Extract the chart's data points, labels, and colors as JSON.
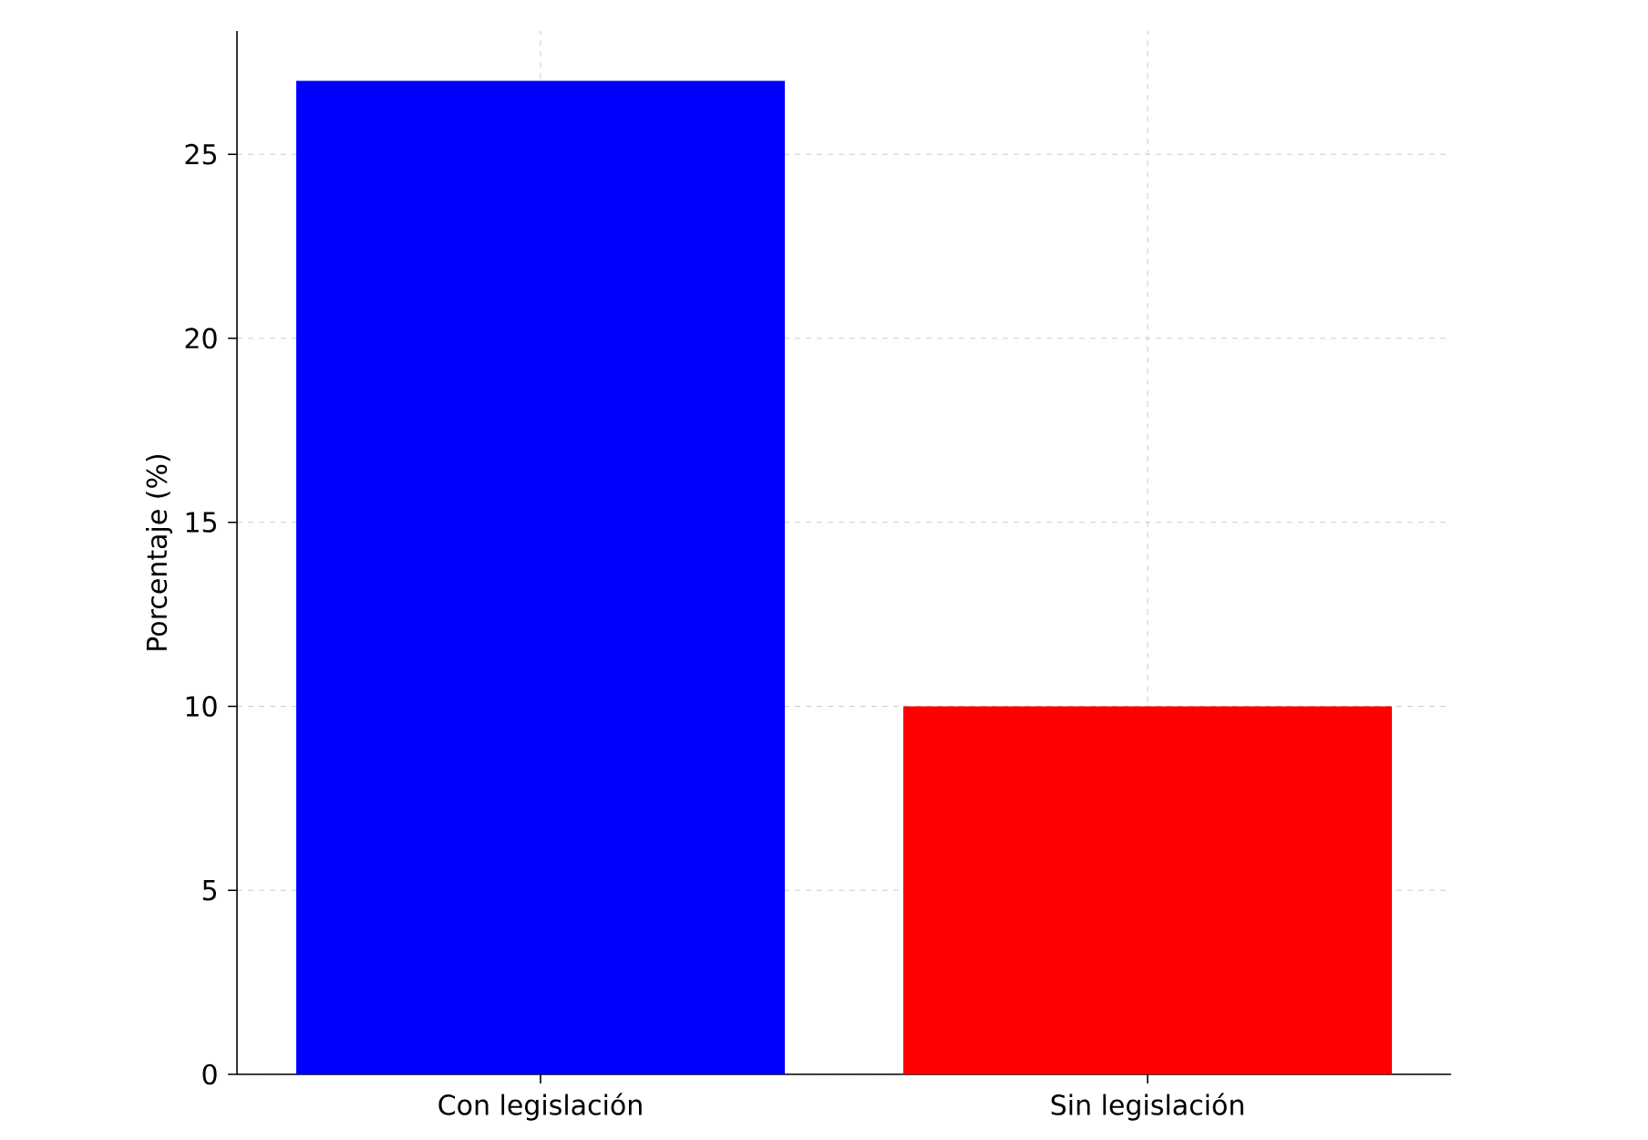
{
  "chart_data": {
    "type": "bar",
    "ylabel": "Porcentaje (%)",
    "categories": [
      "Con legislación",
      "Sin legislación"
    ],
    "values": [
      27,
      10
    ],
    "colors": [
      "#0000ff",
      "#ff0000"
    ],
    "ylim": [
      0,
      28.35
    ],
    "yticks": [
      0,
      5,
      10,
      15,
      20,
      25
    ],
    "grid": true
  }
}
